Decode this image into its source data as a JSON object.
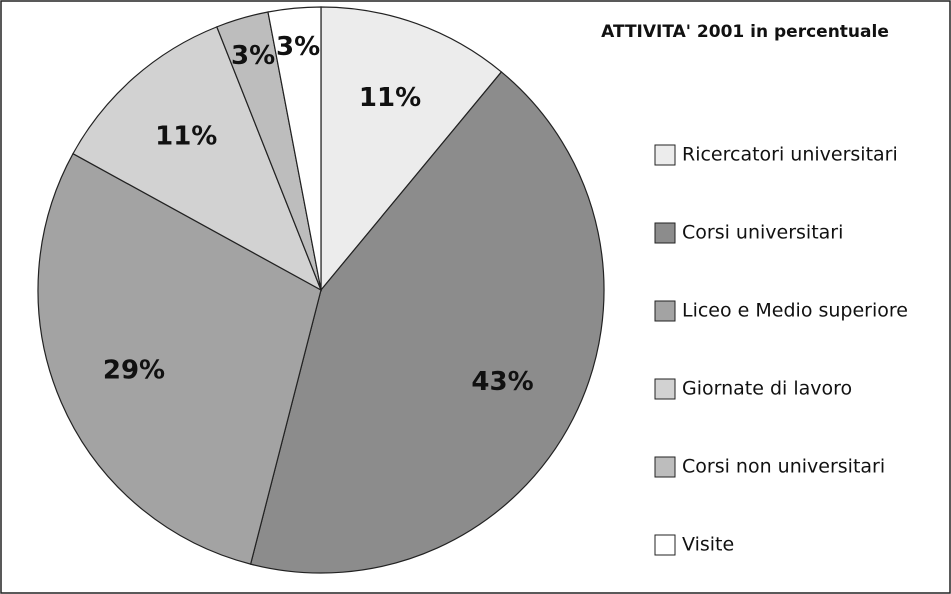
{
  "chart_data": {
    "type": "pie",
    "title": "ATTIVITA' 2001 in percentuale",
    "categories": [
      "Ricercatori universitari",
      "Corsi universitari",
      "Liceo e Medio superiore",
      "Giornate di lavoro",
      "Corsi non universitari",
      "Visite"
    ],
    "values": [
      11,
      43,
      29,
      11,
      3,
      3
    ],
    "value_labels": [
      "11%",
      "43%",
      "29%",
      "11%",
      "3%",
      "3%"
    ],
    "colors": [
      "#ececec",
      "#8c8c8c",
      "#a3a3a3",
      "#d2d2d2",
      "#bdbdbd",
      "#ffffff"
    ]
  }
}
